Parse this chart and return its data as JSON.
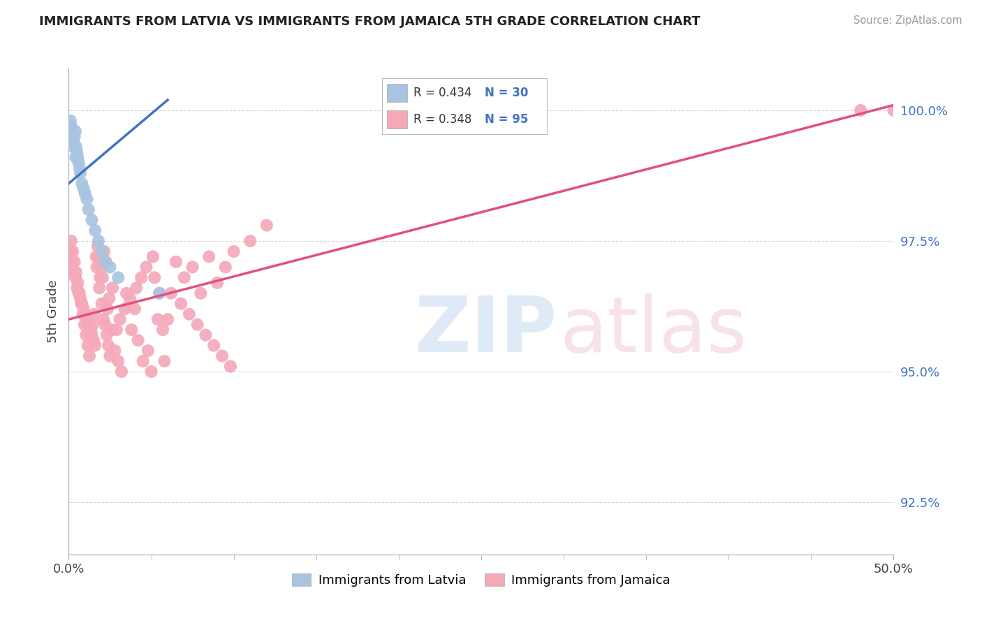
{
  "title": "IMMIGRANTS FROM LATVIA VS IMMIGRANTS FROM JAMAICA 5TH GRADE CORRELATION CHART",
  "source": "Source: ZipAtlas.com",
  "ylabel": "5th Grade",
  "xlim": [
    0.0,
    50.0
  ],
  "ylim_bottom": 91.5,
  "ylim_top": 100.8,
  "x_ticks": [
    0.0,
    50.0
  ],
  "x_tick_labels": [
    "0.0%",
    "50.0%"
  ],
  "y_ticks": [
    92.5,
    95.0,
    97.5,
    100.0
  ],
  "y_tick_labels": [
    "92.5%",
    "95.0%",
    "97.5%",
    "100.0%"
  ],
  "legend_r_latvia": "R = 0.434",
  "legend_n_latvia": "N = 30",
  "legend_r_jamaica": "R = 0.348",
  "legend_n_jamaica": "N = 95",
  "latvia_color": "#a8c4e0",
  "jamaica_color": "#f4a8b8",
  "trendline_latvia_color": "#4472c4",
  "trendline_jamaica_color": "#e05080",
  "scatter_latvia_x": [
    0.1,
    0.15,
    0.2,
    0.25,
    0.3,
    0.35,
    0.4,
    0.45,
    0.5,
    0.55,
    0.6,
    0.65,
    0.7,
    0.8,
    0.9,
    1.0,
    1.1,
    1.2,
    1.4,
    1.6,
    1.8,
    2.0,
    2.2,
    2.5,
    3.0,
    0.12,
    0.22,
    0.32,
    0.42,
    5.5
  ],
  "scatter_latvia_y": [
    99.8,
    99.7,
    99.6,
    99.5,
    99.4,
    99.5,
    99.6,
    99.3,
    99.2,
    99.1,
    99.0,
    98.9,
    98.8,
    98.6,
    98.5,
    98.4,
    98.3,
    98.1,
    97.9,
    97.7,
    97.5,
    97.3,
    97.1,
    97.0,
    96.8,
    99.7,
    99.5,
    99.3,
    99.1,
    96.5
  ],
  "scatter_jamaica_x": [
    0.1,
    0.2,
    0.3,
    0.4,
    0.5,
    0.6,
    0.7,
    0.8,
    0.9,
    1.0,
    1.1,
    1.2,
    1.3,
    1.4,
    1.5,
    1.6,
    1.7,
    1.8,
    1.9,
    2.0,
    2.1,
    2.2,
    2.3,
    2.4,
    2.5,
    2.6,
    2.8,
    3.0,
    3.2,
    3.5,
    3.8,
    4.0,
    4.2,
    4.5,
    4.8,
    5.0,
    5.2,
    5.5,
    5.8,
    6.0,
    6.5,
    7.0,
    7.5,
    8.0,
    8.5,
    9.0,
    9.5,
    10.0,
    11.0,
    12.0,
    0.15,
    0.25,
    0.35,
    0.45,
    0.55,
    0.65,
    0.75,
    0.85,
    0.95,
    1.05,
    1.15,
    1.25,
    1.35,
    1.45,
    1.55,
    1.65,
    1.75,
    1.85,
    1.95,
    2.05,
    2.15,
    2.25,
    2.35,
    2.45,
    2.65,
    2.9,
    3.1,
    3.4,
    3.7,
    4.1,
    4.4,
    4.7,
    5.1,
    5.4,
    5.7,
    6.2,
    6.8,
    7.3,
    7.8,
    8.3,
    8.8,
    9.3,
    48.0,
    50.0,
    9.8
  ],
  "scatter_jamaica_y": [
    97.3,
    97.1,
    96.9,
    96.8,
    96.6,
    96.5,
    96.4,
    96.3,
    96.2,
    96.1,
    96.0,
    95.9,
    95.8,
    95.7,
    95.6,
    95.5,
    97.0,
    97.2,
    96.8,
    96.3,
    96.0,
    95.9,
    95.7,
    95.5,
    95.3,
    95.8,
    95.4,
    95.2,
    95.0,
    96.5,
    95.8,
    96.2,
    95.6,
    95.2,
    95.4,
    95.0,
    96.8,
    96.5,
    95.2,
    96.0,
    97.1,
    96.8,
    97.0,
    96.5,
    97.2,
    96.7,
    97.0,
    97.3,
    97.5,
    97.8,
    97.5,
    97.3,
    97.1,
    96.9,
    96.7,
    96.5,
    96.3,
    96.1,
    95.9,
    95.7,
    95.5,
    95.3,
    95.8,
    95.9,
    96.1,
    97.2,
    97.4,
    96.6,
    97.0,
    96.8,
    97.3,
    97.1,
    96.2,
    96.4,
    96.6,
    95.8,
    96.0,
    96.2,
    96.4,
    96.6,
    96.8,
    97.0,
    97.2,
    96.0,
    95.8,
    96.5,
    96.3,
    96.1,
    95.9,
    95.7,
    95.5,
    95.3,
    100.0,
    100.0,
    95.1
  ],
  "trendline_latvia_x0": 0.0,
  "trendline_latvia_x1": 6.0,
  "trendline_latvia_y0": 98.6,
  "trendline_latvia_y1": 100.2,
  "trendline_jamaica_x0": 0.0,
  "trendline_jamaica_x1": 50.0,
  "trendline_jamaica_y0": 96.0,
  "trendline_jamaica_y1": 100.1
}
